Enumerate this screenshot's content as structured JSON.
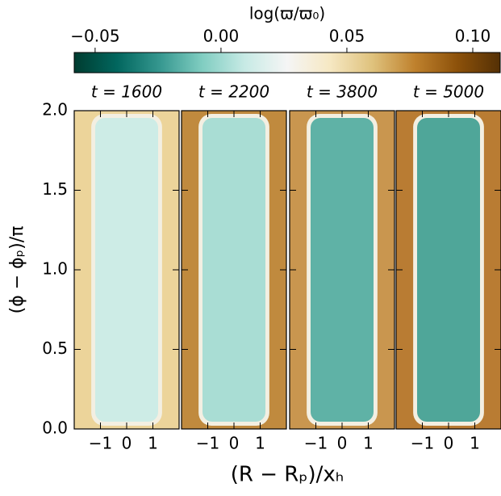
{
  "chart_data": {
    "type": "heatmap",
    "colorbar": {
      "label": "log(ϖ/ϖ₀)",
      "clim": [
        -0.0583,
        0.1109
      ],
      "ticks": [
        {
          "value": -0.05,
          "label": "−0.05"
        },
        {
          "value": 0,
          "label": "0.00"
        },
        {
          "value": 0.05,
          "label": "0.05"
        },
        {
          "value": 0.1,
          "label": "0.10"
        }
      ],
      "colormap": [
        "#003c30",
        "#01665e",
        "#35978f",
        "#80cdc1",
        "#c7eae5",
        "#f5f5f5",
        "#f6e8c3",
        "#dfc27d",
        "#bf812d",
        "#8c510a",
        "#543005"
      ]
    },
    "ylabel": "(ϕ − ϕₚ)/π",
    "xlabel": "(R − Rₚ)/xₕ",
    "ylim": [
      0,
      2
    ],
    "yticks": [
      {
        "value": 0,
        "label": "0.0"
      },
      {
        "value": 0.5,
        "label": "0.5"
      },
      {
        "value": 1,
        "label": "1.0"
      },
      {
        "value": 1.5,
        "label": "1.5"
      },
      {
        "value": 2,
        "label": "2.0"
      }
    ],
    "xlim": [
      -2,
      2
    ],
    "xticks": [
      {
        "value": -1,
        "label": "−1"
      },
      0,
      1
    ],
    "panels": [
      {
        "title": "t = 1600",
        "edge_color": "#ecd49a",
        "core_color": "#cdece6"
      },
      {
        "title": "t = 2200",
        "edge_color": "#c08a3e",
        "core_color": "#a9ddd4"
      },
      {
        "title": "t = 3800",
        "edge_color": "#c9964f",
        "core_color": "#5fb2a6"
      },
      {
        "title": "t = 5000",
        "edge_color": "#b97c33",
        "core_color": "#4fa699"
      }
    ]
  }
}
